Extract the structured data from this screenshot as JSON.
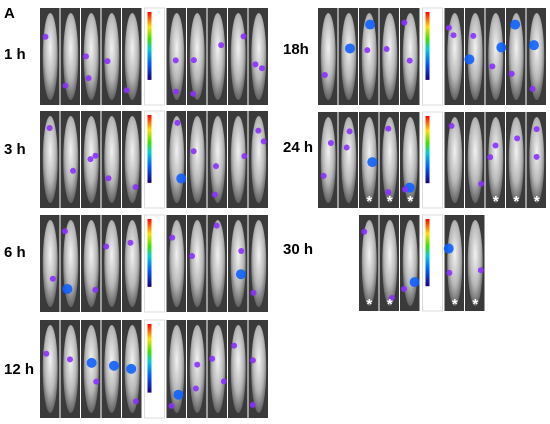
{
  "panel_label": "A",
  "rows": [
    {
      "time": "1 h"
    },
    {
      "time": "3 h"
    },
    {
      "time": "6 h"
    },
    {
      "time": "12 h"
    },
    {
      "time": "18h"
    },
    {
      "time": "24 h",
      "markers": [
        "*",
        "*",
        "*",
        "*",
        "*",
        "*"
      ]
    },
    {
      "time": "30 h",
      "markers": [
        "*",
        "*",
        "*",
        "*"
      ]
    }
  ]
}
